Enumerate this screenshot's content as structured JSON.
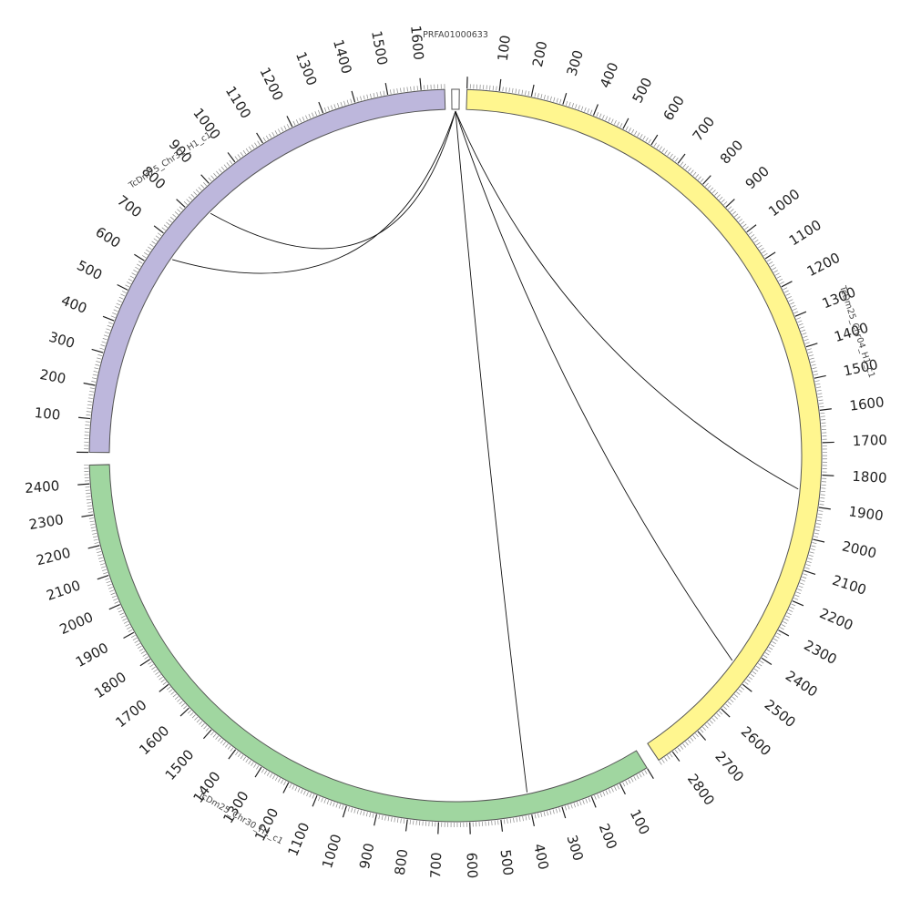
{
  "chart_data": {
    "type": "chord",
    "segments": [
      {
        "name": "PRFA01000633",
        "length": 4,
        "color": "#ffffff",
        "tick_labels": []
      },
      {
        "name": "TcDm25_Chr04_H1_c1",
        "length": 2850,
        "color": "#fff68f",
        "tick_labels": [
          "100",
          "200",
          "300",
          "400",
          "500",
          "600",
          "700",
          "800",
          "900",
          "1000",
          "1100",
          "1200",
          "1300",
          "1400",
          "1500",
          "1600",
          "1700",
          "1800",
          "1900",
          "2000",
          "2100",
          "2200",
          "2300",
          "2400",
          "2500",
          "2600",
          "2700",
          "2800"
        ]
      },
      {
        "name": "TcDm25_Chr30_H1_c1",
        "length": 2460,
        "color": "#a0d6a0",
        "tick_labels": [
          "100",
          "200",
          "300",
          "400",
          "500",
          "600",
          "700",
          "800",
          "900",
          "1000",
          "1100",
          "1200",
          "1300",
          "1400",
          "1500",
          "1600",
          "1700",
          "1800",
          "1900",
          "2000",
          "2100",
          "2200",
          "2300",
          "2400"
        ]
      },
      {
        "name": "TcDm25_Chr31_H1_c1",
        "length": 1670,
        "color": "#bdb7dc",
        "tick_labels": [
          "100",
          "200",
          "300",
          "400",
          "500",
          "600",
          "700",
          "800",
          "900",
          "1000",
          "1100",
          "1200",
          "1300",
          "1400",
          "1500",
          "1600"
        ]
      }
    ],
    "links": [
      {
        "from": "PRFA01000633",
        "to_segment": "TcDm25_Chr04_H1_c1",
        "to_position": 1850
      },
      {
        "from": "PRFA01000633",
        "to_segment": "TcDm25_Chr04_H1_c1",
        "to_position": 2460
      },
      {
        "from": "PRFA01000633",
        "to_segment": "TcDm25_Chr30_H1_c1",
        "to_position": 400
      },
      {
        "from": "PRFA01000633",
        "to_segment": "TcDm25_Chr31_H1_c1",
        "to_position": 650
      },
      {
        "from": "PRFA01000633",
        "to_segment": "TcDm25_Chr31_H1_c1",
        "to_position": 840
      }
    ]
  }
}
